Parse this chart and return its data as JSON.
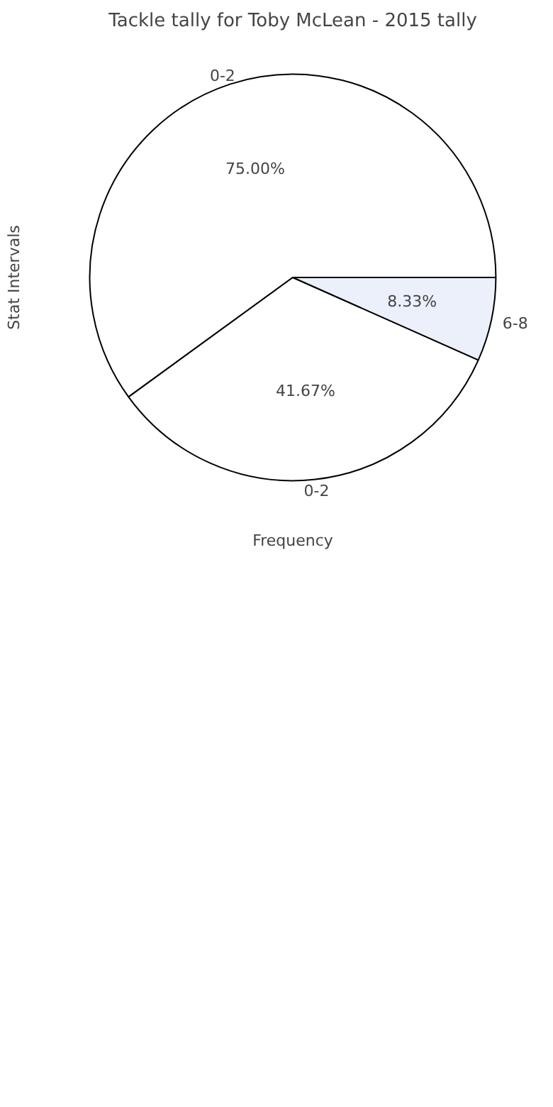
{
  "chart_data": {
    "type": "pie",
    "title": "Tackle tally for Toby McLean - 2015 tally",
    "xlabel": "Frequency",
    "ylabel": "Stat Intervals",
    "categories": [
      "0-2",
      "0-2",
      "6-8"
    ],
    "values": [
      75.0,
      41.67,
      8.33
    ],
    "colors": [
      "#ffffff",
      "#ffffff",
      "#ebf0fb"
    ],
    "value_labels": [
      "75.00%",
      "41.67%",
      "8.33%"
    ]
  }
}
